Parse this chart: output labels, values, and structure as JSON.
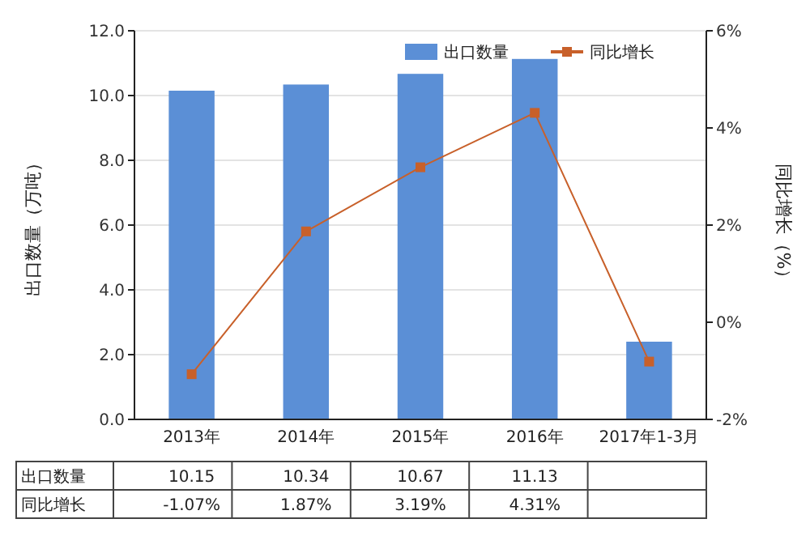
{
  "chart_data": {
    "type": "bar",
    "ylabel": "出口数量（万吨）",
    "y2label": "同比增长（%）",
    "categories": [
      "2013年",
      "2014年",
      "2015年",
      "2016年",
      "2017年1-3月"
    ],
    "series": [
      {
        "name": "出口数量",
        "color": "#5b8fd6",
        "values": [
          10.15,
          10.34,
          10.67,
          11.13,
          2.4
        ],
        "value_labels": [
          "10.15",
          "10.34",
          "10.67",
          "11.13",
          null
        ]
      },
      {
        "name": "同比增长",
        "type": "line",
        "axis": "y2",
        "color": "#c8602a",
        "marker": "square",
        "values": [
          -1.07,
          1.87,
          3.19,
          4.31,
          -0.81
        ],
        "value_labels": [
          "-1.07%",
          "1.87%",
          "3.19%",
          "4.31%",
          null
        ]
      }
    ],
    "ylim": [
      0,
      12
    ],
    "yticks": [
      {
        "value": 0,
        "label": "0.0"
      },
      {
        "value": 2,
        "label": "2.0"
      },
      {
        "value": 4,
        "label": "4.0"
      },
      {
        "value": 6,
        "label": "6.0"
      },
      {
        "value": 8,
        "label": "8.0"
      },
      {
        "value": 10,
        "label": "10.0"
      },
      {
        "value": 12,
        "label": "12.0"
      }
    ],
    "y2lim": [
      -2,
      6
    ],
    "y2ticks": [
      {
        "value": -2,
        "label": "-2%"
      },
      {
        "value": 0,
        "label": "0%"
      },
      {
        "value": 2,
        "label": "2%"
      },
      {
        "value": 4,
        "label": "4%"
      },
      {
        "value": 6,
        "label": "6%"
      }
    ],
    "grid": "y",
    "legend": "top right"
  }
}
